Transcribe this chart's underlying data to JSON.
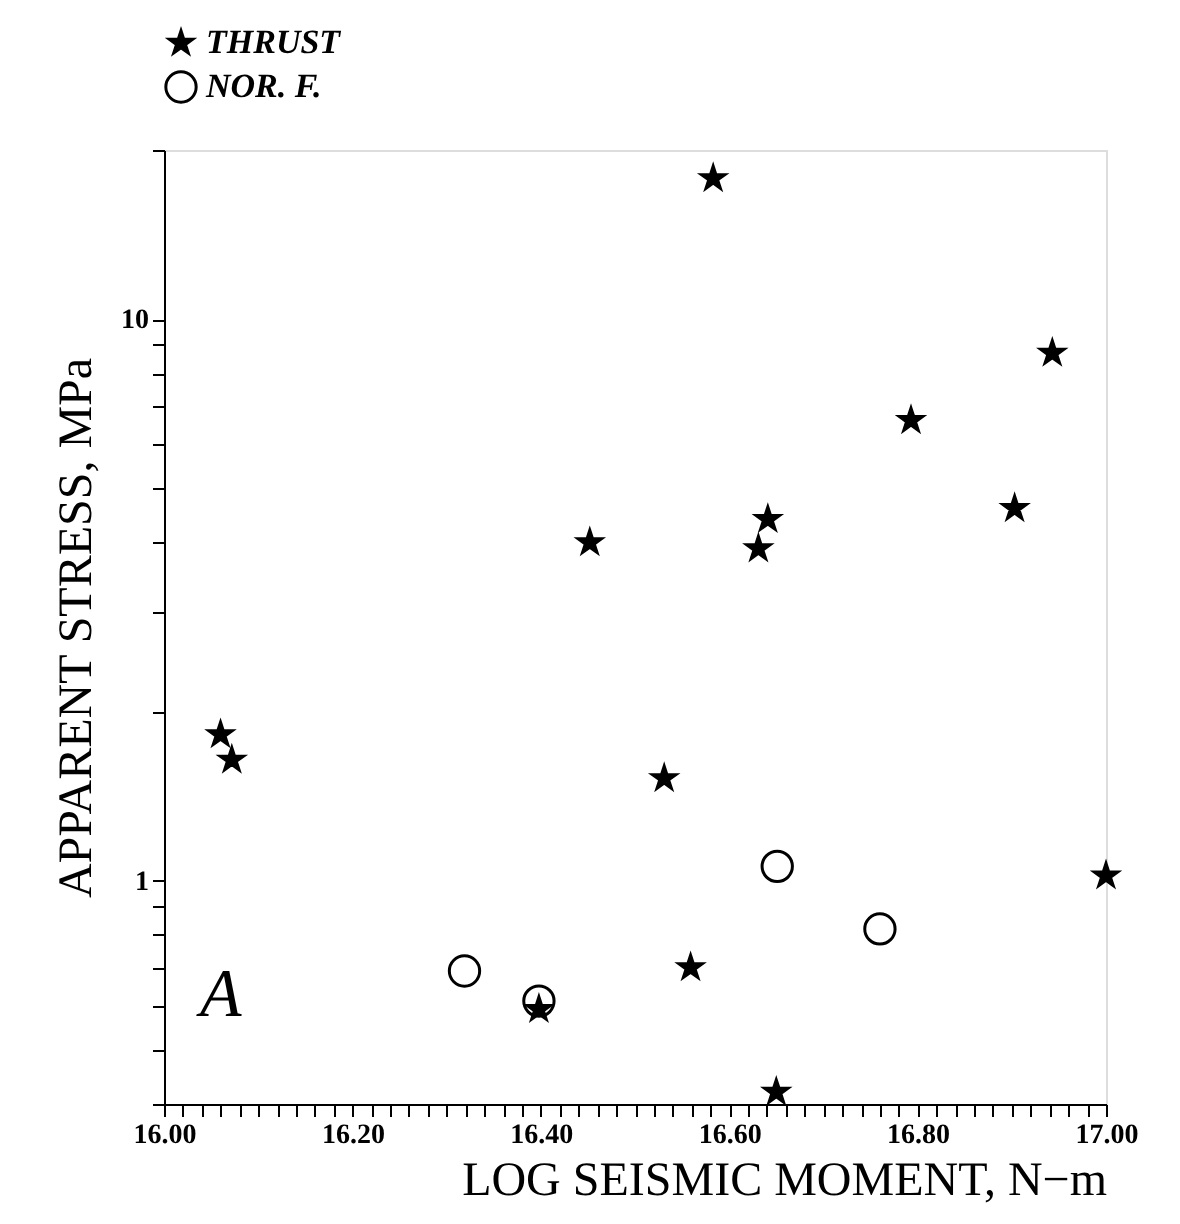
{
  "chart_data": {
    "type": "scatter",
    "xlabel": "LOG SEISMIC MOMENT, N−m",
    "ylabel": "APPARENT STRESS, MPa",
    "annotations": [
      "A"
    ],
    "log": "y",
    "grid": false,
    "legend": "top",
    "xlim": [
      16.0,
      17.0
    ],
    "ylim": [
      0.4,
      20
    ],
    "xticks": [
      {
        "value": 16.0,
        "label": "16.00"
      },
      {
        "value": 16.02,
        "label": null
      },
      {
        "value": 16.04,
        "label": null
      },
      {
        "value": 16.06,
        "label": null
      },
      {
        "value": 16.08,
        "label": null
      },
      {
        "value": 16.1,
        "label": null
      },
      {
        "value": 16.12,
        "label": null
      },
      {
        "value": 16.14,
        "label": null
      },
      {
        "value": 16.16,
        "label": null
      },
      {
        "value": 16.18,
        "label": null
      },
      {
        "value": 16.2,
        "label": "16.20"
      },
      {
        "value": 16.22,
        "label": null
      },
      {
        "value": 16.24,
        "label": null
      },
      {
        "value": 16.26,
        "label": null
      },
      {
        "value": 16.28,
        "label": null
      },
      {
        "value": 16.3,
        "label": null
      },
      {
        "value": 16.32,
        "label": null
      },
      {
        "value": 16.34,
        "label": null
      },
      {
        "value": 16.36,
        "label": null
      },
      {
        "value": 16.38,
        "label": null
      },
      {
        "value": 16.4,
        "label": "16.40"
      },
      {
        "value": 16.42,
        "label": null
      },
      {
        "value": 16.44,
        "label": null
      },
      {
        "value": 16.46,
        "label": null
      },
      {
        "value": 16.48,
        "label": null
      },
      {
        "value": 16.5,
        "label": null
      },
      {
        "value": 16.52,
        "label": null
      },
      {
        "value": 16.54,
        "label": null
      },
      {
        "value": 16.56,
        "label": null
      },
      {
        "value": 16.58,
        "label": null
      },
      {
        "value": 16.6,
        "label": "16.60"
      },
      {
        "value": 16.62,
        "label": null
      },
      {
        "value": 16.64,
        "label": null
      },
      {
        "value": 16.66,
        "label": null
      },
      {
        "value": 16.68,
        "label": null
      },
      {
        "value": 16.7,
        "label": null
      },
      {
        "value": 16.72,
        "label": null
      },
      {
        "value": 16.74,
        "label": null
      },
      {
        "value": 16.76,
        "label": null
      },
      {
        "value": 16.78,
        "label": null
      },
      {
        "value": 16.8,
        "label": "16.80"
      },
      {
        "value": 16.82,
        "label": null
      },
      {
        "value": 16.84,
        "label": null
      },
      {
        "value": 16.86,
        "label": null
      },
      {
        "value": 16.88,
        "label": null
      },
      {
        "value": 16.9,
        "label": null
      },
      {
        "value": 16.92,
        "label": null
      },
      {
        "value": 16.94,
        "label": null
      },
      {
        "value": 16.96,
        "label": null
      },
      {
        "value": 16.98,
        "label": null
      },
      {
        "value": 17.0,
        "label": "17.00"
      }
    ],
    "yticks": [
      {
        "value": 0.4,
        "label": null
      },
      {
        "value": 0.5,
        "label": null
      },
      {
        "value": 0.6,
        "label": null
      },
      {
        "value": 0.7,
        "label": null
      },
      {
        "value": 0.8,
        "label": null
      },
      {
        "value": 0.9,
        "label": null
      },
      1,
      {
        "value": 2,
        "label": null
      },
      {
        "value": 3,
        "label": null
      },
      {
        "value": 4,
        "label": null
      },
      {
        "value": 5,
        "label": null
      },
      {
        "value": 6,
        "label": null
      },
      {
        "value": 7,
        "label": null
      },
      {
        "value": 8,
        "label": null
      },
      {
        "value": 9,
        "label": null
      },
      10,
      {
        "value": 20,
        "label": null
      }
    ],
    "series": [
      {
        "name": "THRUST",
        "color": "#000000",
        "marker": "star",
        "x": [
          16.583,
          16.943,
          16.793,
          16.903,
          16.641,
          16.631,
          16.452,
          16.06,
          16.072,
          16.531,
          17.0,
          16.559,
          16.398,
          16.65
        ],
        "values": [
          17.8,
          8.7,
          6.6,
          4.6,
          4.4,
          3.9,
          4.0,
          1.82,
          1.64,
          1.52,
          1.02,
          0.7,
          0.59,
          0.42
        ]
      },
      {
        "name": "NOR. F.",
        "color": "#000000",
        "marker": "circle",
        "x": [
          16.319,
          16.398,
          16.651,
          16.76
        ],
        "values": [
          0.69,
          0.61,
          1.06,
          0.82
        ]
      }
    ]
  }
}
